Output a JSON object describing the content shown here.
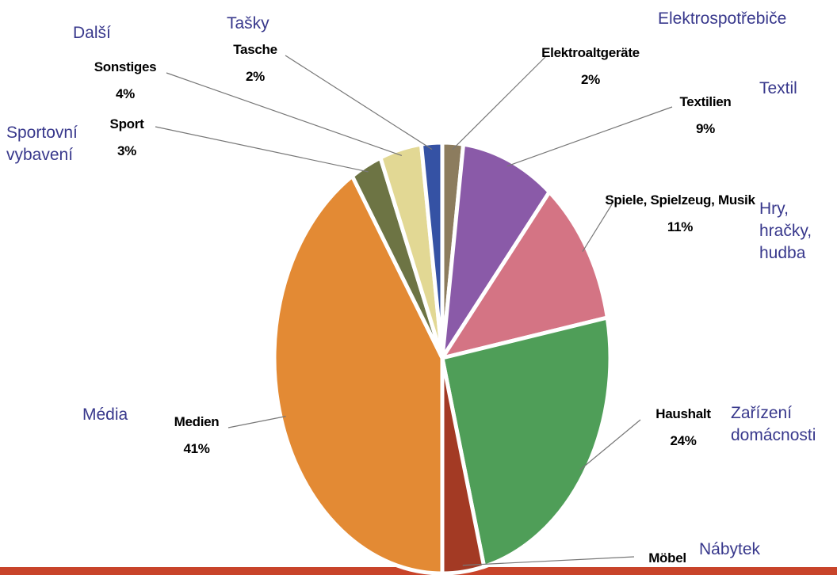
{
  "chart_data": {
    "type": "pie",
    "categories": [
      "Elektroaltgeräte",
      "Textilien",
      "Spiele, Spielzeug, Musik",
      "Haushalt",
      "Möbel",
      "Medien",
      "Sport",
      "Sonstiges",
      "Tasche"
    ],
    "translations": [
      "Elektrospotřebiče",
      "Textil",
      "Hry, hračky, hudba",
      "Zařízení domácnosti",
      "Nábytek",
      "Média",
      "Sportovní vybavení",
      "Další",
      "Tašky"
    ],
    "values": [
      2,
      9,
      11,
      24,
      4,
      41,
      3,
      4,
      2
    ],
    "value_labels": [
      "2%",
      "9%",
      "11%",
      "24%",
      null,
      "41%",
      "3%",
      "4%",
      "2%"
    ],
    "colors": [
      "#8c7c5e",
      "#8a5aa8",
      "#d47484",
      "#4f9e58",
      "#a33a24",
      "#e38a34",
      "#6d7444",
      "#e2d894",
      "#3552a4"
    ]
  }
}
